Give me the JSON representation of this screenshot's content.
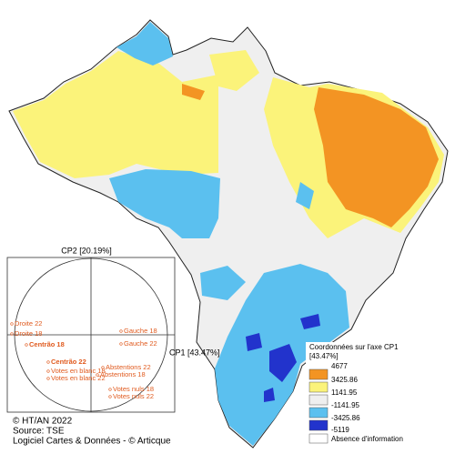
{
  "correlation_circle": {
    "axis_y_label": "CP2 [20.19%]",
    "axis_x_label": "CP1 [43.47%]",
    "points": [
      {
        "label": "Droite 22",
        "bold": false
      },
      {
        "label": "Droite 18",
        "bold": false
      },
      {
        "label": "Centrão 18",
        "bold": true
      },
      {
        "label": "Gauche 18",
        "bold": false
      },
      {
        "label": "Gauche 22",
        "bold": false
      },
      {
        "label": "Centrão 22",
        "bold": true
      },
      {
        "label": "Votes en blanc 18",
        "bold": false
      },
      {
        "label": "Votes en blanc 22",
        "bold": false
      },
      {
        "label": "Abstentions 22",
        "bold": false
      },
      {
        "label": "Abstentions 18",
        "bold": false
      },
      {
        "label": "Votes nuls 18",
        "bold": false
      },
      {
        "label": "Votes nuls 22",
        "bold": false
      }
    ]
  },
  "legend": {
    "title": [
      "Coordonnées sur l'axe CP1",
      "[43.47%]"
    ],
    "breaks": [
      4677,
      3425.86,
      1141.95,
      -1141.95,
      -3425.86,
      -5119
    ],
    "no_data": "Absence d'information"
  },
  "credits": [
    "© HT/AN 2022",
    "Source: TSE",
    "Logiciel Cartes & Données - © Articque"
  ]
}
